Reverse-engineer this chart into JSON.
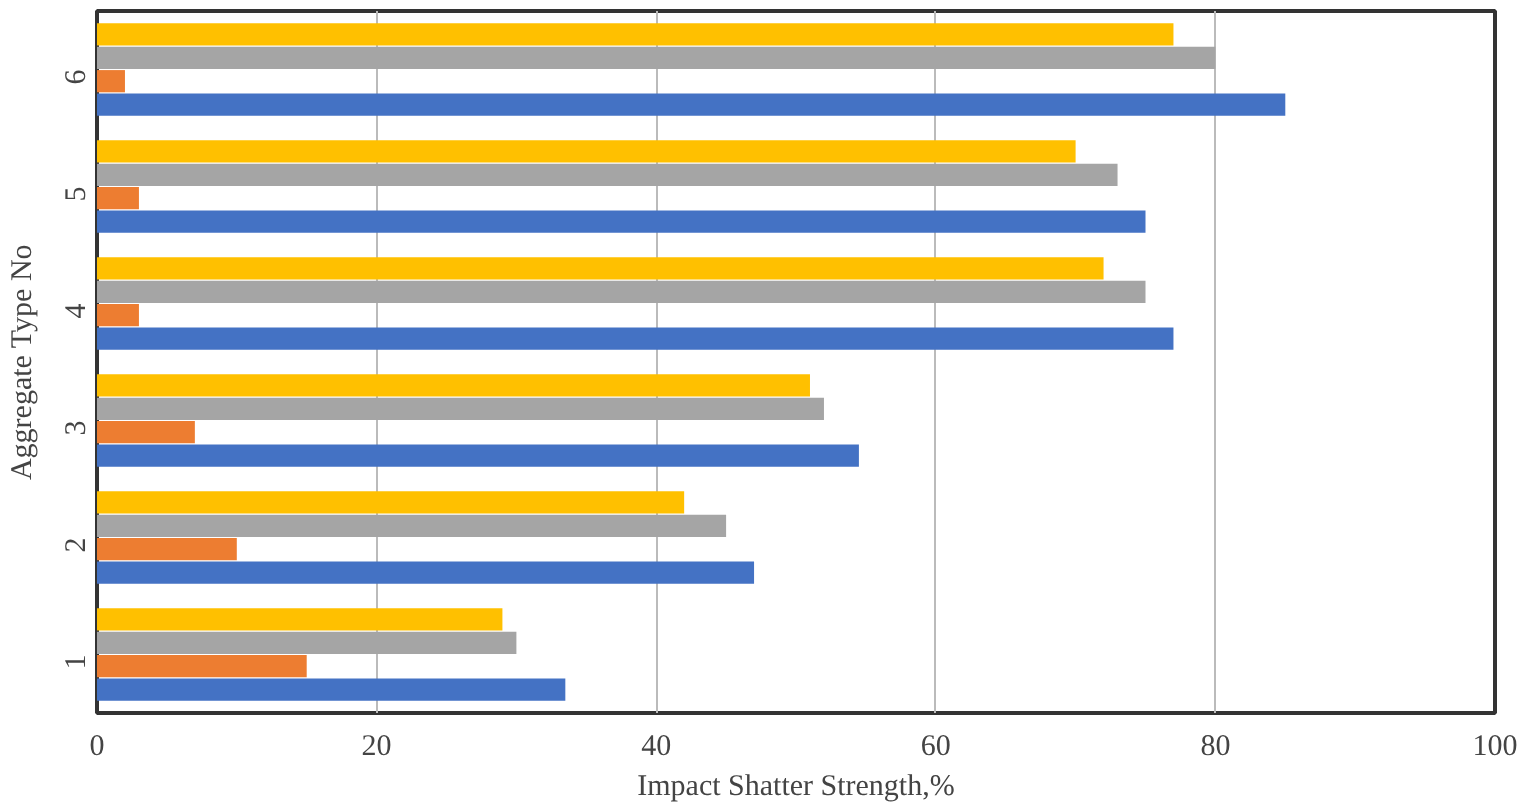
{
  "chart_data": {
    "type": "bar",
    "orientation": "horizontal",
    "xlabel": "Impact Shatter Strength,%",
    "ylabel": "Aggregate Type No",
    "categories": [
      "6",
      "5",
      "4",
      "3",
      "2",
      "1"
    ],
    "series": [
      {
        "color": "#4472c4",
        "values": [
          85,
          75,
          77,
          54.5,
          47,
          33.5
        ]
      },
      {
        "color": "#ed7d31",
        "values": [
          2,
          3,
          3,
          7,
          10,
          15
        ]
      },
      {
        "color": "#a5a5a5",
        "values": [
          80,
          73,
          75,
          52,
          45,
          30
        ]
      },
      {
        "color": "#ffc000",
        "values": [
          77,
          70,
          72,
          51,
          42,
          29
        ]
      }
    ],
    "xlim": [
      0,
      100
    ],
    "xticks": [
      0,
      20,
      40,
      60,
      80,
      100
    ],
    "grid": "x"
  }
}
